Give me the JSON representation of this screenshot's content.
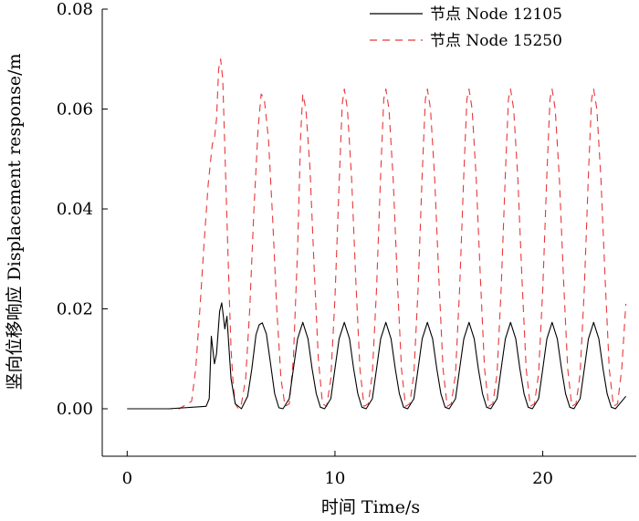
{
  "chart_data": {
    "type": "line",
    "title": "",
    "xlabel": "时间 Time/s",
    "ylabel": "竖向位移响应 Displacement response/m",
    "xlim": [
      -1.2,
      24.5
    ],
    "ylim": [
      -0.0095,
      0.08
    ],
    "xticks": [
      0,
      10,
      20
    ],
    "xtick_labels": [
      "0",
      "10",
      "20"
    ],
    "yticks": [
      0.0,
      0.02,
      0.04,
      0.06,
      0.08
    ],
    "ytick_labels": [
      "0.00",
      "0.02",
      "0.04",
      "0.06",
      "0.08"
    ],
    "grid": false,
    "legend_position": "top-right",
    "series": [
      {
        "name": "节点 Node 12105",
        "color": "#000000",
        "dash": "solid",
        "x": [
          0,
          2.0,
          3.8,
          3.95,
          4.05,
          4.2,
          4.3,
          4.45,
          4.55,
          4.7,
          4.8,
          4.9,
          5.0,
          5.2,
          5.5,
          5.8,
          6.0,
          6.2,
          6.35,
          6.5,
          6.7,
          6.9,
          7.1,
          7.3,
          7.5,
          7.8,
          8.0,
          8.2,
          8.45,
          8.7,
          8.9,
          9.1,
          9.3,
          9.5,
          9.8,
          10.0,
          10.2,
          10.45,
          10.7,
          10.9,
          11.1,
          11.3,
          11.5,
          11.8,
          12.0,
          12.2,
          12.45,
          12.7,
          12.9,
          13.1,
          13.3,
          13.5,
          13.8,
          14.0,
          14.2,
          14.45,
          14.7,
          14.9,
          15.1,
          15.3,
          15.5,
          15.8,
          16.0,
          16.2,
          16.45,
          16.7,
          16.9,
          17.1,
          17.3,
          17.5,
          17.8,
          18.0,
          18.2,
          18.45,
          18.7,
          18.9,
          19.1,
          19.3,
          19.5,
          19.8,
          20.0,
          20.2,
          20.45,
          20.7,
          20.9,
          21.1,
          21.3,
          21.5,
          21.8,
          22.0,
          22.2,
          22.45,
          22.7,
          22.9,
          23.1,
          23.3,
          23.5,
          23.8,
          24.0
        ],
        "y": [
          0.0,
          0.0,
          0.0005,
          0.002,
          0.0145,
          0.009,
          0.011,
          0.0195,
          0.0212,
          0.016,
          0.0185,
          0.012,
          0.006,
          0.001,
          0.0,
          0.0025,
          0.008,
          0.0148,
          0.0168,
          0.0172,
          0.015,
          0.009,
          0.003,
          0.0002,
          0.0,
          0.002,
          0.008,
          0.014,
          0.0173,
          0.014,
          0.008,
          0.003,
          0.0003,
          0.0,
          0.002,
          0.008,
          0.014,
          0.0173,
          0.014,
          0.008,
          0.003,
          0.0003,
          0.0,
          0.002,
          0.008,
          0.014,
          0.0173,
          0.014,
          0.008,
          0.003,
          0.0003,
          0.0,
          0.002,
          0.008,
          0.014,
          0.0173,
          0.014,
          0.008,
          0.003,
          0.0003,
          0.0,
          0.002,
          0.008,
          0.014,
          0.0173,
          0.014,
          0.008,
          0.003,
          0.0003,
          0.0,
          0.002,
          0.008,
          0.014,
          0.0173,
          0.014,
          0.008,
          0.003,
          0.0003,
          0.0,
          0.002,
          0.008,
          0.014,
          0.0173,
          0.014,
          0.008,
          0.003,
          0.0003,
          0.0,
          0.002,
          0.008,
          0.014,
          0.0173,
          0.014,
          0.008,
          0.003,
          0.0003,
          0.0,
          0.0015,
          0.0025
        ]
      },
      {
        "name": "节点 Node 15250",
        "color": "#e8373a",
        "dash": "dashed",
        "x": [
          0,
          2.5,
          3.1,
          3.3,
          3.5,
          3.7,
          3.9,
          4.1,
          4.2,
          4.3,
          4.4,
          4.5,
          4.6,
          4.7,
          4.8,
          4.9,
          5.0,
          5.1,
          5.2,
          5.35,
          5.5,
          5.7,
          5.9,
          6.1,
          6.3,
          6.45,
          6.6,
          6.8,
          7.0,
          7.2,
          7.4,
          7.6,
          7.8,
          8.0,
          8.2,
          8.35,
          8.45,
          8.6,
          8.8,
          9.0,
          9.2,
          9.4,
          9.6,
          9.8,
          10.0,
          10.2,
          10.35,
          10.45,
          10.6,
          10.8,
          11.0,
          11.2,
          11.4,
          11.6,
          11.8,
          12.0,
          12.2,
          12.35,
          12.45,
          12.6,
          12.8,
          13.0,
          13.2,
          13.4,
          13.6,
          13.8,
          14.0,
          14.2,
          14.35,
          14.45,
          14.6,
          14.8,
          15.0,
          15.2,
          15.4,
          15.6,
          15.8,
          16.0,
          16.2,
          16.35,
          16.45,
          16.6,
          16.8,
          17.0,
          17.2,
          17.4,
          17.6,
          17.8,
          18.0,
          18.2,
          18.35,
          18.45,
          18.6,
          18.8,
          19.0,
          19.2,
          19.4,
          19.6,
          19.8,
          20.0,
          20.2,
          20.35,
          20.45,
          20.6,
          20.8,
          21.0,
          21.2,
          21.4,
          21.6,
          21.8,
          22.0,
          22.2,
          22.35,
          22.45,
          22.6,
          22.8,
          23.0,
          23.2,
          23.4,
          23.6,
          23.8,
          24.0
        ],
        "y": [
          0.0,
          0.0,
          0.0015,
          0.008,
          0.02,
          0.033,
          0.045,
          0.053,
          0.054,
          0.058,
          0.068,
          0.07,
          0.066,
          0.052,
          0.038,
          0.024,
          0.012,
          0.005,
          0.001,
          0.0,
          0.001,
          0.006,
          0.02,
          0.04,
          0.056,
          0.063,
          0.062,
          0.054,
          0.038,
          0.02,
          0.006,
          0.0005,
          0.001,
          0.01,
          0.032,
          0.055,
          0.063,
          0.06,
          0.048,
          0.028,
          0.01,
          0.001,
          0.0005,
          0.006,
          0.022,
          0.045,
          0.061,
          0.064,
          0.06,
          0.046,
          0.026,
          0.008,
          0.0005,
          0.001,
          0.007,
          0.024,
          0.047,
          0.062,
          0.064,
          0.06,
          0.046,
          0.026,
          0.008,
          0.0005,
          0.001,
          0.007,
          0.024,
          0.047,
          0.062,
          0.064,
          0.06,
          0.046,
          0.026,
          0.008,
          0.0005,
          0.001,
          0.007,
          0.024,
          0.047,
          0.062,
          0.064,
          0.06,
          0.046,
          0.026,
          0.008,
          0.0005,
          0.001,
          0.007,
          0.024,
          0.047,
          0.062,
          0.064,
          0.06,
          0.046,
          0.026,
          0.008,
          0.0005,
          0.001,
          0.007,
          0.024,
          0.047,
          0.062,
          0.064,
          0.06,
          0.046,
          0.026,
          0.008,
          0.0005,
          0.001,
          0.007,
          0.024,
          0.047,
          0.062,
          0.064,
          0.06,
          0.046,
          0.026,
          0.008,
          0.0005,
          0.001,
          0.008,
          0.021
        ]
      }
    ]
  }
}
